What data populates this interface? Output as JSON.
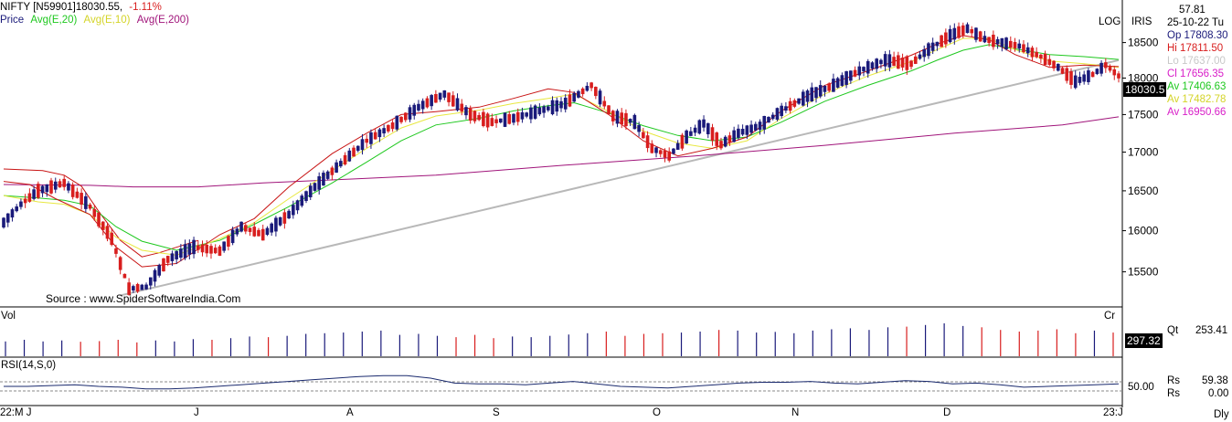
{
  "header": {
    "symbol": "NIFTY [N59901]",
    "close": "18030.55,",
    "change": "-1.11%",
    "price_label": "Price",
    "ma20_label": "Avg(E,20)",
    "ma10_label": "Avg(E,10)",
    "ma200_label": "Avg(E,200)",
    "log_label": "LOG",
    "iris_label": "IRIS"
  },
  "colors": {
    "up_candle": "#1a1a7a",
    "down_candle": "#d81e1e",
    "ma20": "#1ec81e",
    "ma10": "#e8e840",
    "ma_red": "#c81414",
    "ma200": "#a0147a",
    "trendline": "#b8b8b8",
    "rsi": "#1a2a6e"
  },
  "info_panel": {
    "top_value": "57.81",
    "date": "25-10-22 Tu",
    "open": "Op 17808.30",
    "high": "Hi  17811.50",
    "low": "Lo  17637.00",
    "close": "Cl  17656.35",
    "av1": "Av 17406.63",
    "av2": "Av 17482.78",
    "av3": "Av 16950.66",
    "qt_label": "Qt",
    "qt_value": "253.41",
    "rs_label1": "Rs",
    "rs_value1": "59.38",
    "rs_label2": "Rs",
    "rs_value2": "0.00"
  },
  "panels": {
    "source": "Source : www.SpiderSoftwareIndia.Com",
    "vol_label": "Vol",
    "cr_label": "Cr",
    "vol_badge": "297.32",
    "price_badge": "18030.5",
    "rsi_label": "RSI(14,S,0)",
    "rsi_level": "50.00",
    "dly_label": "Dly"
  },
  "chart_data": {
    "type": "candlestick",
    "title": "NIFTY [N59901]",
    "y_axis": {
      "scale": "log",
      "ticks": [
        15500,
        16000,
        16500,
        17000,
        17500,
        18000,
        18500
      ],
      "tick_labels": [
        "15500",
        "16000",
        "16500",
        "17000",
        "17500",
        "18000",
        "18500"
      ],
      "range": [
        15150,
        18850
      ]
    },
    "x_axis": {
      "month_labels": [
        "22:M J",
        "J",
        "A",
        "S",
        "O",
        "N",
        "D",
        "23:J"
      ]
    },
    "ma_red_trend": [
      [
        0,
        16780
      ],
      [
        9,
        16760
      ],
      [
        14,
        16700
      ],
      [
        18,
        16560
      ],
      [
        22,
        16240
      ],
      [
        27,
        15880
      ],
      [
        32,
        15680
      ],
      [
        36,
        15730
      ],
      [
        45,
        15880
      ],
      [
        60,
        16150
      ],
      [
        75,
        16480
      ],
      [
        87,
        16560
      ],
      [
        100,
        16600
      ],
      [
        115,
        16700
      ],
      [
        130,
        16800
      ],
      [
        145,
        16870
      ],
      [
        160,
        16960
      ],
      [
        175,
        17070
      ],
      [
        190,
        17140
      ],
      [
        205,
        17200
      ],
      [
        217,
        17300
      ],
      [
        230,
        17380
      ],
      [
        245,
        17450
      ],
      [
        258,
        17480
      ]
    ],
    "ma200_trend": [
      [
        0,
        16580
      ],
      [
        20,
        16570
      ],
      [
        30,
        16550
      ],
      [
        45,
        16550
      ],
      [
        60,
        16600
      ],
      [
        80,
        16650
      ],
      [
        100,
        16700
      ],
      [
        130,
        16830
      ],
      [
        160,
        16950
      ],
      [
        190,
        17090
      ],
      [
        220,
        17250
      ],
      [
        245,
        17360
      ],
      [
        258,
        17470
      ]
    ],
    "ma20_trend": [
      [
        0,
        16440
      ],
      [
        8,
        16410
      ],
      [
        14,
        16380
      ],
      [
        20,
        16310
      ],
      [
        26,
        16050
      ],
      [
        32,
        15870
      ],
      [
        40,
        15760
      ],
      [
        50,
        15880
      ],
      [
        58,
        16080
      ],
      [
        66,
        16300
      ],
      [
        76,
        16600
      ],
      [
        84,
        16870
      ],
      [
        92,
        17150
      ],
      [
        100,
        17360
      ],
      [
        110,
        17450
      ],
      [
        118,
        17550
      ],
      [
        126,
        17620
      ],
      [
        132,
        17660
      ],
      [
        140,
        17520
      ],
      [
        148,
        17350
      ],
      [
        156,
        17220
      ],
      [
        164,
        17150
      ],
      [
        172,
        17200
      ],
      [
        180,
        17400
      ],
      [
        190,
        17680
      ],
      [
        200,
        17900
      ],
      [
        210,
        18100
      ],
      [
        216,
        18250
      ],
      [
        222,
        18390
      ],
      [
        228,
        18470
      ],
      [
        234,
        18410
      ],
      [
        242,
        18330
      ],
      [
        250,
        18300
      ],
      [
        258,
        18260
      ]
    ],
    "ma10_trend": [
      [
        0,
        16440
      ],
      [
        8,
        16360
      ],
      [
        14,
        16330
      ],
      [
        20,
        16200
      ],
      [
        26,
        15920
      ],
      [
        32,
        15760
      ],
      [
        40,
        15700
      ],
      [
        50,
        15900
      ],
      [
        58,
        16100
      ],
      [
        66,
        16400
      ],
      [
        76,
        16760
      ],
      [
        84,
        17050
      ],
      [
        92,
        17320
      ],
      [
        100,
        17480
      ],
      [
        110,
        17560
      ],
      [
        118,
        17650
      ],
      [
        126,
        17720
      ],
      [
        132,
        17780
      ],
      [
        140,
        17540
      ],
      [
        148,
        17280
      ],
      [
        156,
        17120
      ],
      [
        164,
        17050
      ],
      [
        172,
        17150
      ],
      [
        180,
        17450
      ],
      [
        190,
        17780
      ],
      [
        200,
        18030
      ],
      [
        210,
        18230
      ],
      [
        216,
        18400
      ],
      [
        222,
        18560
      ],
      [
        228,
        18560
      ],
      [
        234,
        18400
      ],
      [
        242,
        18240
      ],
      [
        250,
        18200
      ],
      [
        258,
        18150
      ]
    ],
    "ma_red_short": [
      [
        0,
        16620
      ],
      [
        6,
        16580
      ],
      [
        12,
        16400
      ],
      [
        20,
        16200
      ],
      [
        26,
        15800
      ],
      [
        32,
        15560
      ],
      [
        40,
        15600
      ],
      [
        50,
        15950
      ],
      [
        58,
        16150
      ],
      [
        66,
        16550
      ],
      [
        76,
        16980
      ],
      [
        84,
        17250
      ],
      [
        92,
        17500
      ],
      [
        100,
        17540
      ],
      [
        110,
        17600
      ],
      [
        118,
        17720
      ],
      [
        126,
        17850
      ],
      [
        132,
        17800
      ],
      [
        140,
        17500
      ],
      [
        148,
        17150
      ],
      [
        156,
        16950
      ],
      [
        164,
        17050
      ],
      [
        172,
        17200
      ],
      [
        180,
        17550
      ],
      [
        190,
        17900
      ],
      [
        200,
        18100
      ],
      [
        210,
        18320
      ],
      [
        216,
        18480
      ],
      [
        222,
        18600
      ],
      [
        228,
        18540
      ],
      [
        234,
        18330
      ],
      [
        242,
        18150
      ],
      [
        250,
        18180
      ],
      [
        258,
        18160
      ]
    ],
    "trendline": [
      [
        27,
        15220
      ],
      [
        258,
        18250
      ]
    ],
    "candles_path": [
      [
        0,
        16100
      ],
      [
        4,
        16330
      ],
      [
        8,
        16500
      ],
      [
        14,
        16600
      ],
      [
        20,
        16300
      ],
      [
        25,
        15900
      ],
      [
        29,
        15300
      ],
      [
        33,
        15320
      ],
      [
        38,
        15650
      ],
      [
        44,
        15800
      ],
      [
        50,
        15750
      ],
      [
        55,
        16050
      ],
      [
        60,
        15950
      ],
      [
        66,
        16200
      ],
      [
        72,
        16550
      ],
      [
        78,
        16850
      ],
      [
        84,
        17150
      ],
      [
        90,
        17350
      ],
      [
        96,
        17600
      ],
      [
        102,
        17780
      ],
      [
        108,
        17500
      ],
      [
        113,
        17400
      ],
      [
        118,
        17450
      ],
      [
        124,
        17550
      ],
      [
        130,
        17650
      ],
      [
        136,
        17900
      ],
      [
        141,
        17480
      ],
      [
        146,
        17400
      ],
      [
        150,
        17050
      ],
      [
        154,
        16950
      ],
      [
        158,
        17200
      ],
      [
        162,
        17380
      ],
      [
        166,
        17100
      ],
      [
        170,
        17250
      ],
      [
        175,
        17350
      ],
      [
        180,
        17550
      ],
      [
        186,
        17750
      ],
      [
        192,
        17900
      ],
      [
        198,
        18100
      ],
      [
        204,
        18250
      ],
      [
        210,
        18200
      ],
      [
        214,
        18400
      ],
      [
        219,
        18600
      ],
      [
        223,
        18700
      ],
      [
        227,
        18550
      ],
      [
        231,
        18500
      ],
      [
        235,
        18450
      ],
      [
        240,
        18300
      ],
      [
        244,
        18150
      ],
      [
        248,
        17950
      ],
      [
        252,
        18050
      ],
      [
        255,
        18180
      ],
      [
        258,
        18030
      ]
    ],
    "rsi": {
      "values": [
        50,
        50,
        51,
        52,
        50,
        49,
        47,
        47,
        48,
        50,
        52,
        54,
        56,
        58,
        60,
        62,
        63,
        63,
        60,
        54,
        53,
        53,
        52,
        54,
        56,
        53,
        50,
        49,
        48,
        50,
        52,
        54,
        55,
        55,
        56,
        54,
        53,
        55,
        57,
        56,
        53,
        54,
        52,
        49,
        50,
        51,
        52,
        53
      ],
      "level": 50
    },
    "volume": {
      "values": [
        45,
        50,
        45,
        48,
        44,
        46,
        50,
        42,
        48,
        45,
        52,
        50,
        55,
        60,
        58,
        62,
        68,
        70,
        72,
        75,
        78,
        65,
        68,
        62,
        58,
        65,
        55,
        60,
        58,
        62,
        66,
        70,
        75,
        62,
        68,
        70,
        72,
        75,
        80,
        78,
        72,
        74,
        70,
        78,
        82,
        85,
        80,
        88,
        90,
        95,
        100,
        92,
        88,
        80,
        75,
        78,
        82,
        70,
        78,
        72
      ]
    }
  }
}
